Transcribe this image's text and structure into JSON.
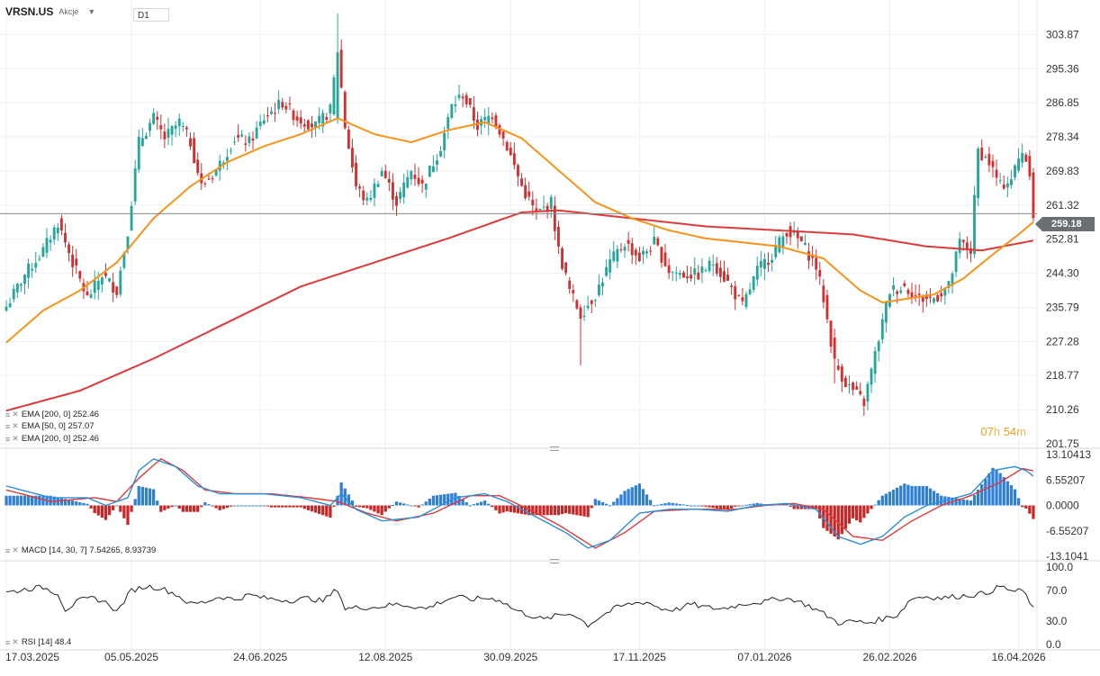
{
  "header": {
    "symbol": "VRSN.US",
    "asset_type": "Akcje",
    "timeframe": "D1"
  },
  "indicators": {
    "ema_a": "EMA [200, 0] 252.46",
    "ema_b": "EMA [50, 0] 257.07",
    "ema_c": "EMA [200, 0] 252.46",
    "macd": "MACD [14, 30, 7] 7.54265, 8.93739",
    "rsi": "RSI [14] 48.4"
  },
  "timer": {
    "hours": "07",
    "h_unit": "h",
    "minutes": "54",
    "m_unit": "m"
  },
  "current_price": "259.18",
  "colors": {
    "up": "#26a69a",
    "down": "#d32f2f",
    "ema50": "#f7931a",
    "ema200": "#dc3a3a",
    "macd_line": "#2a8fd8",
    "signal_line": "#e03a3a",
    "hist_up": "#2f7fd6",
    "hist_down": "#c62828",
    "rsi": "#222222",
    "price_tag": "#6b6e73"
  },
  "chart_data": [
    {
      "type": "candlestick",
      "title": "VRSN.US D1",
      "x_ticks": [
        "17.03.2025",
        "05.05.2025",
        "24.06.2025",
        "12.08.2025",
        "30.09.2025",
        "17.11.2025",
        "07.01.2026",
        "26.02.2026",
        "16.04.2026"
      ],
      "y_ticks": [
        "303.87",
        "295.36",
        "286.85",
        "278.34",
        "269.83",
        "261.32",
        "252.81",
        "244.30",
        "235.79",
        "227.28",
        "218.77",
        "210.26",
        "201.75"
      ],
      "ylim": [
        201.75,
        308.0
      ],
      "current_price": 259.18,
      "close_anchors": [
        [
          0,
          236
        ],
        [
          5,
          244
        ],
        [
          10,
          250
        ],
        [
          14,
          257
        ],
        [
          18,
          247
        ],
        [
          22,
          238
        ],
        [
          26,
          244
        ],
        [
          30,
          240
        ],
        [
          33,
          255
        ],
        [
          36,
          277
        ],
        [
          40,
          283
        ],
        [
          43,
          278
        ],
        [
          47,
          282
        ],
        [
          50,
          277
        ],
        [
          53,
          266
        ],
        [
          57,
          270
        ],
        [
          62,
          278
        ],
        [
          66,
          277
        ],
        [
          70,
          283
        ],
        [
          75,
          287
        ],
        [
          79,
          283
        ],
        [
          84,
          281
        ],
        [
          88,
          285
        ],
        [
          90,
          300
        ],
        [
          92,
          281
        ],
        [
          95,
          266
        ],
        [
          98,
          262
        ],
        [
          102,
          270
        ],
        [
          106,
          262
        ],
        [
          110,
          270
        ],
        [
          113,
          266
        ],
        [
          118,
          276
        ],
        [
          121,
          286
        ],
        [
          124,
          289
        ],
        [
          128,
          281
        ],
        [
          132,
          284
        ],
        [
          136,
          276
        ],
        [
          140,
          266
        ],
        [
          144,
          259
        ],
        [
          148,
          262
        ],
        [
          150,
          250
        ],
        [
          153,
          240
        ],
        [
          156,
          234
        ],
        [
          160,
          239
        ],
        [
          164,
          247
        ],
        [
          168,
          252
        ],
        [
          172,
          248
        ],
        [
          176,
          252
        ],
        [
          180,
          245
        ],
        [
          184,
          244
        ],
        [
          188,
          244
        ],
        [
          192,
          247
        ],
        [
          196,
          242
        ],
        [
          200,
          236
        ],
        [
          204,
          245
        ],
        [
          208,
          249
        ],
        [
          212,
          255
        ],
        [
          216,
          252
        ],
        [
          220,
          246
        ],
        [
          222,
          238
        ],
        [
          225,
          222
        ],
        [
          228,
          217
        ],
        [
          231,
          214
        ],
        [
          233,
          212
        ],
        [
          236,
          224
        ],
        [
          240,
          240
        ],
        [
          244,
          241
        ],
        [
          248,
          238
        ],
        [
          252,
          238
        ],
        [
          256,
          241
        ],
        [
          259,
          252
        ],
        [
          262,
          250
        ],
        [
          264,
          275
        ],
        [
          267,
          272
        ],
        [
          270,
          266
        ],
        [
          273,
          268
        ],
        [
          276,
          275
        ],
        [
          278,
          270
        ],
        [
          279,
          259
        ]
      ],
      "ema50_anchors": [
        [
          0,
          227
        ],
        [
          10,
          235
        ],
        [
          20,
          240
        ],
        [
          30,
          247
        ],
        [
          40,
          258
        ],
        [
          50,
          266
        ],
        [
          60,
          272
        ],
        [
          70,
          276
        ],
        [
          80,
          279
        ],
        [
          90,
          283
        ],
        [
          100,
          279
        ],
        [
          110,
          277
        ],
        [
          120,
          280
        ],
        [
          130,
          282
        ],
        [
          140,
          278
        ],
        [
          150,
          270
        ],
        [
          160,
          262
        ],
        [
          170,
          258
        ],
        [
          180,
          255
        ],
        [
          190,
          253
        ],
        [
          200,
          252
        ],
        [
          210,
          251
        ],
        [
          222,
          248
        ],
        [
          232,
          240
        ],
        [
          238,
          237
        ],
        [
          245,
          238
        ],
        [
          252,
          239
        ],
        [
          260,
          243
        ],
        [
          268,
          249
        ],
        [
          275,
          254
        ],
        [
          279,
          257.07
        ]
      ],
      "ema200_anchors": [
        [
          0,
          210
        ],
        [
          20,
          215
        ],
        [
          40,
          223
        ],
        [
          60,
          232
        ],
        [
          80,
          241
        ],
        [
          100,
          247
        ],
        [
          120,
          253
        ],
        [
          140,
          259.5
        ],
        [
          150,
          260
        ],
        [
          170,
          258
        ],
        [
          190,
          256
        ],
        [
          210,
          255
        ],
        [
          230,
          254
        ],
        [
          250,
          251
        ],
        [
          265,
          250
        ],
        [
          279,
          252.46
        ]
      ]
    },
    {
      "type": "line",
      "title": "MACD [14, 30, 7]",
      "y_ticks": [
        "13.10413",
        "6.55207",
        "0.0000",
        "-6.55207",
        "-13.1041"
      ],
      "ylim": [
        -13.1041,
        13.10413
      ],
      "macd_anchors": [
        [
          0,
          5
        ],
        [
          12,
          2
        ],
        [
          22,
          2
        ],
        [
          27,
          0
        ],
        [
          33,
          2
        ],
        [
          36,
          9
        ],
        [
          40,
          12
        ],
        [
          46,
          10
        ],
        [
          52,
          5
        ],
        [
          58,
          3
        ],
        [
          70,
          3
        ],
        [
          80,
          2
        ],
        [
          88,
          0
        ],
        [
          91,
          3
        ],
        [
          95,
          -1
        ],
        [
          102,
          -4
        ],
        [
          112,
          -3
        ],
        [
          122,
          2
        ],
        [
          130,
          3
        ],
        [
          136,
          1
        ],
        [
          144,
          -3
        ],
        [
          152,
          -7
        ],
        [
          158,
          -11
        ],
        [
          164,
          -9
        ],
        [
          172,
          -2
        ],
        [
          180,
          -1
        ],
        [
          188,
          -1
        ],
        [
          196,
          -1.5
        ],
        [
          204,
          0
        ],
        [
          212,
          0.5
        ],
        [
          220,
          -1
        ],
        [
          226,
          -8
        ],
        [
          232,
          -10
        ],
        [
          238,
          -8
        ],
        [
          244,
          -3
        ],
        [
          250,
          0
        ],
        [
          256,
          1.5
        ],
        [
          262,
          3
        ],
        [
          268,
          9
        ],
        [
          274,
          10
        ],
        [
          277,
          9
        ],
        [
          279,
          7.54265
        ]
      ],
      "signal_anchors": [
        [
          0,
          4
        ],
        [
          12,
          1
        ],
        [
          24,
          2
        ],
        [
          30,
          1
        ],
        [
          36,
          7
        ],
        [
          42,
          12
        ],
        [
          48,
          9
        ],
        [
          54,
          4
        ],
        [
          62,
          3
        ],
        [
          72,
          3
        ],
        [
          82,
          2
        ],
        [
          90,
          1
        ],
        [
          98,
          -2
        ],
        [
          106,
          -4
        ],
        [
          116,
          -2
        ],
        [
          126,
          2.5
        ],
        [
          134,
          2.5
        ],
        [
          142,
          -1
        ],
        [
          150,
          -5
        ],
        [
          160,
          -11
        ],
        [
          168,
          -7
        ],
        [
          176,
          -1.5
        ],
        [
          186,
          -1
        ],
        [
          198,
          -1
        ],
        [
          206,
          0
        ],
        [
          214,
          0.5
        ],
        [
          222,
          -1
        ],
        [
          230,
          -8
        ],
        [
          238,
          -9
        ],
        [
          246,
          -4
        ],
        [
          254,
          0
        ],
        [
          262,
          2.5
        ],
        [
          270,
          6
        ],
        [
          276,
          9.5
        ],
        [
          279,
          8.93739
        ]
      ]
    },
    {
      "type": "line",
      "title": "RSI [14]",
      "y_ticks": [
        "100.0",
        "70.0",
        "30.0",
        "0.0"
      ],
      "ylim": [
        0,
        100
      ],
      "rsi_anchors": [
        [
          0,
          67
        ],
        [
          6,
          72
        ],
        [
          10,
          74
        ],
        [
          14,
          66
        ],
        [
          16,
          45
        ],
        [
          20,
          57
        ],
        [
          24,
          60
        ],
        [
          28,
          52
        ],
        [
          30,
          42
        ],
        [
          34,
          70
        ],
        [
          38,
          75
        ],
        [
          42,
          73
        ],
        [
          46,
          65
        ],
        [
          50,
          52
        ],
        [
          54,
          55
        ],
        [
          58,
          62
        ],
        [
          62,
          58
        ],
        [
          66,
          64
        ],
        [
          70,
          60
        ],
        [
          74,
          58
        ],
        [
          78,
          57
        ],
        [
          82,
          60
        ],
        [
          86,
          56
        ],
        [
          90,
          72
        ],
        [
          92,
          46
        ],
        [
          96,
          48
        ],
        [
          100,
          48
        ],
        [
          106,
          52
        ],
        [
          110,
          50
        ],
        [
          114,
          46
        ],
        [
          118,
          55
        ],
        [
          122,
          62
        ],
        [
          126,
          58
        ],
        [
          130,
          60
        ],
        [
          134,
          58
        ],
        [
          138,
          45
        ],
        [
          142,
          38
        ],
        [
          146,
          32
        ],
        [
          150,
          38
        ],
        [
          154,
          40
        ],
        [
          158,
          25
        ],
        [
          162,
          38
        ],
        [
          166,
          48
        ],
        [
          170,
          53
        ],
        [
          174,
          55
        ],
        [
          178,
          46
        ],
        [
          182,
          45
        ],
        [
          186,
          52
        ],
        [
          190,
          48
        ],
        [
          194,
          46
        ],
        [
          198,
          50
        ],
        [
          202,
          54
        ],
        [
          206,
          55
        ],
        [
          210,
          60
        ],
        [
          214,
          58
        ],
        [
          218,
          50
        ],
        [
          222,
          40
        ],
        [
          226,
          28
        ],
        [
          230,
          30
        ],
        [
          234,
          28
        ],
        [
          238,
          33
        ],
        [
          242,
          38
        ],
        [
          246,
          60
        ],
        [
          250,
          62
        ],
        [
          254,
          60
        ],
        [
          258,
          62
        ],
        [
          262,
          64
        ],
        [
          266,
          66
        ],
        [
          270,
          75
        ],
        [
          274,
          68
        ],
        [
          276,
          70
        ],
        [
          279,
          48.4
        ]
      ]
    }
  ]
}
